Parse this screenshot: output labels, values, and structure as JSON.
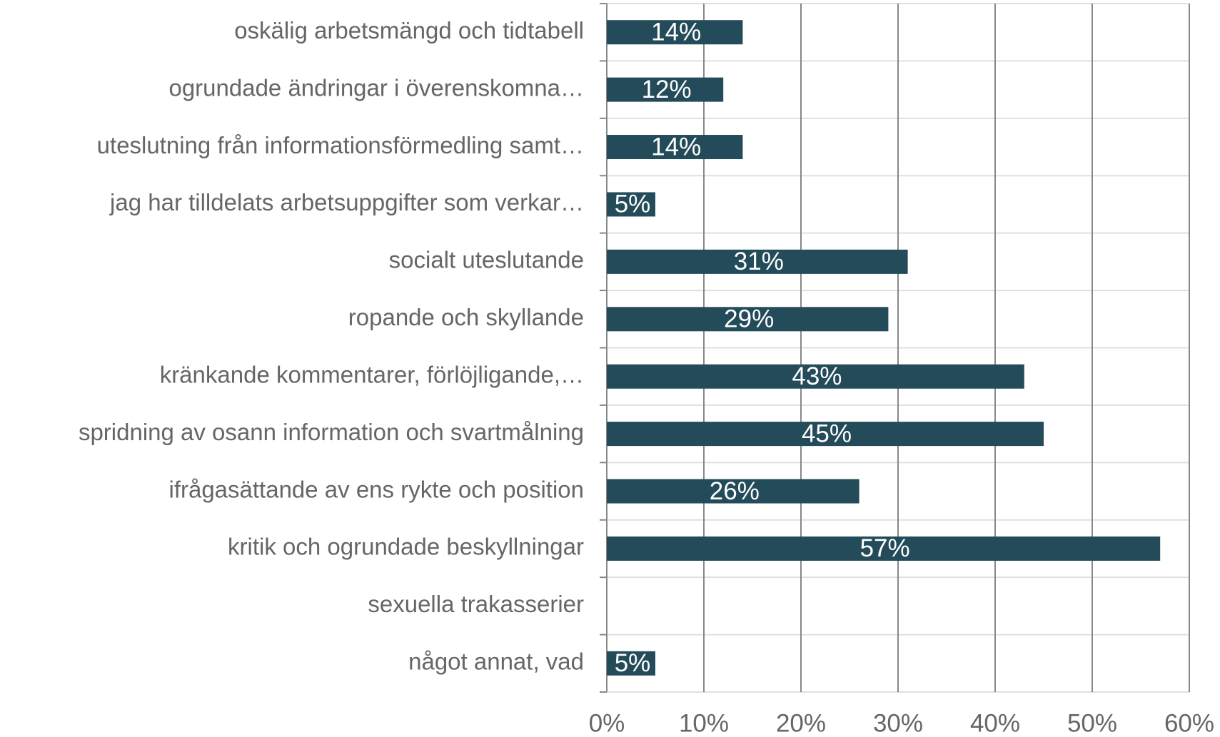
{
  "chart_data": {
    "type": "bar",
    "orientation": "horizontal",
    "categories": [
      "oskälig arbetsmängd och tidtabell",
      "ogrundade ändringar i överenskomna…",
      "uteslutning från informationsförmedling samt…",
      "jag har tilldelats arbetsuppgifter som verkar…",
      "socialt uteslutande",
      "ropande och skyllande",
      "kränkande kommentarer, förlöjligande,…",
      "spridning av osann information och svartmålning",
      "ifrågasättande av ens rykte och position",
      "kritik och ogrundade beskyllningar",
      "sexuella trakasserier",
      "något annat, vad"
    ],
    "values": [
      14,
      12,
      14,
      5,
      31,
      29,
      43,
      45,
      26,
      57,
      0,
      5
    ],
    "value_labels": [
      "14%",
      "12%",
      "14%",
      "5%",
      "31%",
      "29%",
      "43%",
      "45%",
      "26%",
      "57%",
      null,
      "5%"
    ],
    "color": "#234b59",
    "xlim": [
      0,
      60
    ],
    "xticks": [
      {
        "value": 0,
        "label": "0%"
      },
      {
        "value": 10,
        "label": "10%"
      },
      {
        "value": 20,
        "label": "20%"
      },
      {
        "value": 30,
        "label": "30%"
      },
      {
        "value": 40,
        "label": "40%"
      },
      {
        "value": 50,
        "label": "50%"
      },
      {
        "value": 60,
        "label": "60%"
      }
    ],
    "grid": true
  }
}
